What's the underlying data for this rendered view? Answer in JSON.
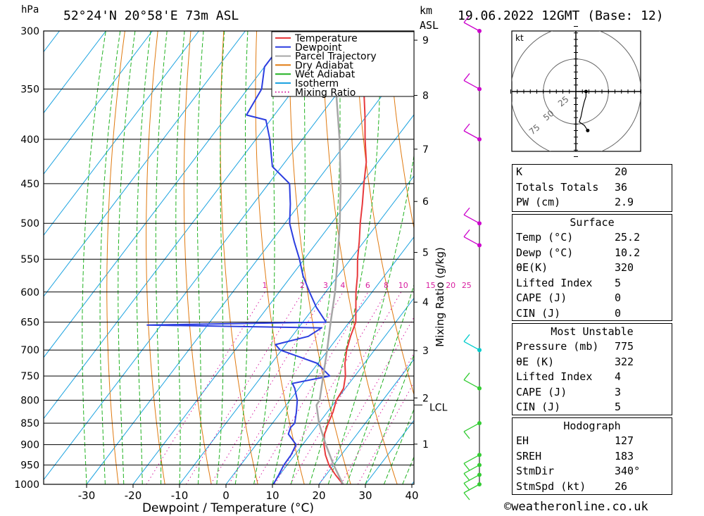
{
  "header": {
    "location": "52°24'N 20°58'E 73m ASL",
    "datetime": "19.06.2022 12GMT (Base: 12)",
    "hpa_unit": "hPa",
    "km_unit_1": "km",
    "km_unit_2": "ASL"
  },
  "footer": {
    "credit": "©weatheronline.co.uk"
  },
  "chart_data": {
    "type": "line",
    "subtype": "skew-T log-P sounding",
    "xlabel": "Dewpoint / Temperature (°C)",
    "ylabel_left": "hPa",
    "ylabel_right": "Mixing Ratio (g/kg)",
    "x_ticks": [
      "-30",
      "-20",
      "-10",
      "0",
      "10",
      "20",
      "30",
      "40"
    ],
    "pressure_ticks": [
      "300",
      "350",
      "400",
      "450",
      "500",
      "550",
      "600",
      "650",
      "700",
      "750",
      "800",
      "850",
      "900",
      "950",
      "1000"
    ],
    "height_ticks_km": [
      "1",
      "2",
      "3",
      "4",
      "5",
      "6",
      "7",
      "8",
      "9"
    ],
    "lcl_label": "LCL",
    "mixing_ratio_labels": [
      "1",
      "2",
      "3",
      "4",
      "6",
      "8",
      "10",
      "15",
      "20",
      "25"
    ],
    "legend": [
      "Temperature",
      "Dewpoint",
      "Parcel Trajectory",
      "Dry Adiabat",
      "Wet Adiabat",
      "Isotherm",
      "Mixing Ratio"
    ],
    "colors": {
      "temperature": "#e8393c",
      "dewpoint": "#2c3ee0",
      "parcel": "#a6a6a6",
      "dry_adiabat": "#e07a10",
      "wet_adiabat": "#22b222",
      "isotherm": "#1ca3e0",
      "mixing_ratio": "#d81ea0",
      "wind_hi": "#cc00cc",
      "wind_mid": "#00cccc",
      "wind_lo": "#33cc33"
    },
    "series": [
      {
        "name": "Temperature",
        "points": [
          [
            1000,
            25.2
          ],
          [
            975,
            22
          ],
          [
            950,
            19
          ],
          [
            925,
            16.6
          ],
          [
            900,
            14.6
          ],
          [
            875,
            13
          ],
          [
            850,
            12
          ],
          [
            825,
            11.2
          ],
          [
            800,
            10
          ],
          [
            775,
            9.6
          ],
          [
            750,
            8
          ],
          [
            725,
            5.8
          ],
          [
            700,
            4
          ],
          [
            675,
            2.6
          ],
          [
            650,
            1.4
          ],
          [
            625,
            -1
          ],
          [
            600,
            -3.5
          ],
          [
            575,
            -5.8
          ],
          [
            550,
            -8.5
          ],
          [
            525,
            -11
          ],
          [
            500,
            -13.8
          ],
          [
            475,
            -16.5
          ],
          [
            450,
            -19.5
          ],
          [
            425,
            -22.5
          ],
          [
            400,
            -26.5
          ],
          [
            375,
            -30.5
          ],
          [
            350,
            -35
          ],
          [
            325,
            -40
          ],
          [
            300,
            -45
          ]
        ]
      },
      {
        "name": "Dewpoint",
        "points": [
          [
            1000,
            10.2
          ],
          [
            975,
            9.8
          ],
          [
            950,
            9.3
          ],
          [
            925,
            9.2
          ],
          [
            900,
            8.6
          ],
          [
            875,
            5.2
          ],
          [
            860,
            4.6
          ],
          [
            850,
            4.8
          ],
          [
            825,
            3.3
          ],
          [
            800,
            1.6
          ],
          [
            775,
            -0.9
          ],
          [
            765,
            -2.2
          ],
          [
            750,
            4.6
          ],
          [
            725,
            -0.2
          ],
          [
            700,
            -10.3
          ],
          [
            690,
            -12.2
          ],
          [
            675,
            -6.5
          ],
          [
            660,
            -5
          ],
          [
            655,
            -43
          ],
          [
            650,
            -5
          ],
          [
            625,
            -9.5
          ],
          [
            600,
            -13.5
          ],
          [
            575,
            -17.5
          ],
          [
            550,
            -21
          ],
          [
            525,
            -25
          ],
          [
            500,
            -29
          ],
          [
            475,
            -32
          ],
          [
            450,
            -35.5
          ],
          [
            430,
            -42
          ],
          [
            400,
            -47
          ],
          [
            380,
            -51
          ],
          [
            375,
            -56
          ],
          [
            350,
            -57
          ],
          [
            330,
            -60
          ],
          [
            310,
            -60
          ],
          [
            300,
            -60
          ]
        ]
      },
      {
        "name": "Parcel Trajectory",
        "points": [
          [
            1000,
            25.2
          ],
          [
            950,
            20
          ],
          [
            900,
            15
          ],
          [
            850,
            10
          ],
          [
            810,
            6.5
          ],
          [
            800,
            6.4
          ],
          [
            750,
            3.2
          ],
          [
            700,
            -0.2
          ],
          [
            650,
            -4
          ],
          [
            600,
            -8
          ],
          [
            550,
            -12.8
          ],
          [
            500,
            -18.2
          ],
          [
            450,
            -24.5
          ],
          [
            400,
            -32
          ],
          [
            350,
            -41
          ],
          [
            300,
            -52
          ]
        ]
      }
    ],
    "hodograph": {
      "unit_label": "kt",
      "ring_labels": [
        "25",
        "50",
        "75"
      ],
      "points": [
        [
          0,
          0
        ],
        [
          6,
          0
        ],
        [
          6,
          -1
        ],
        [
          6,
          -3
        ],
        [
          5,
          -6
        ],
        [
          4,
          -10
        ],
        [
          3,
          -15
        ],
        [
          2,
          -18
        ],
        [
          5,
          -20
        ],
        [
          7,
          -23
        ]
      ]
    },
    "wind_barbs": [
      {
        "pressure": 1000,
        "color_key": "wind_lo"
      },
      {
        "pressure": 975,
        "color_key": "wind_lo"
      },
      {
        "pressure": 950,
        "color_key": "wind_lo"
      },
      {
        "pressure": 925,
        "color_key": "wind_lo"
      },
      {
        "pressure": 850,
        "color_key": "wind_lo"
      },
      {
        "pressure": 775,
        "color_key": "wind_lo"
      },
      {
        "pressure": 700,
        "color_key": "wind_mid"
      },
      {
        "pressure": 530,
        "color_key": "wind_hi"
      },
      {
        "pressure": 500,
        "color_key": "wind_hi"
      },
      {
        "pressure": 400,
        "color_key": "wind_hi"
      },
      {
        "pressure": 350,
        "color_key": "wind_hi"
      },
      {
        "pressure": 300,
        "color_key": "wind_hi"
      }
    ]
  },
  "indices": {
    "top": [
      {
        "k": "K",
        "v": "20"
      },
      {
        "k": "Totals Totals",
        "v": "36"
      },
      {
        "k": "PW (cm)",
        "v": "2.9"
      }
    ],
    "surface": {
      "title": "Surface",
      "rows": [
        {
          "k": "Temp (°C)",
          "v": "25.2"
        },
        {
          "k": "Dewp (°C)",
          "v": "10.2"
        },
        {
          "k": "θE(K)",
          "v": "320"
        },
        {
          "k": "Lifted Index",
          "v": "5"
        },
        {
          "k": "CAPE (J)",
          "v": "0"
        },
        {
          "k": "CIN (J)",
          "v": "0"
        }
      ]
    },
    "most_unstable": {
      "title": "Most Unstable",
      "rows": [
        {
          "k": "Pressure (mb)",
          "v": "775"
        },
        {
          "k": "θE (K)",
          "v": "322"
        },
        {
          "k": "Lifted Index",
          "v": "4"
        },
        {
          "k": "CAPE (J)",
          "v": "3"
        },
        {
          "k": "CIN (J)",
          "v": "5"
        }
      ]
    },
    "hodograph": {
      "title": "Hodograph",
      "rows": [
        {
          "k": "EH",
          "v": "127"
        },
        {
          "k": "SREH",
          "v": "183"
        },
        {
          "k": "StmDir",
          "v": "340°"
        },
        {
          "k": "StmSpd (kt)",
          "v": "26"
        }
      ]
    }
  }
}
